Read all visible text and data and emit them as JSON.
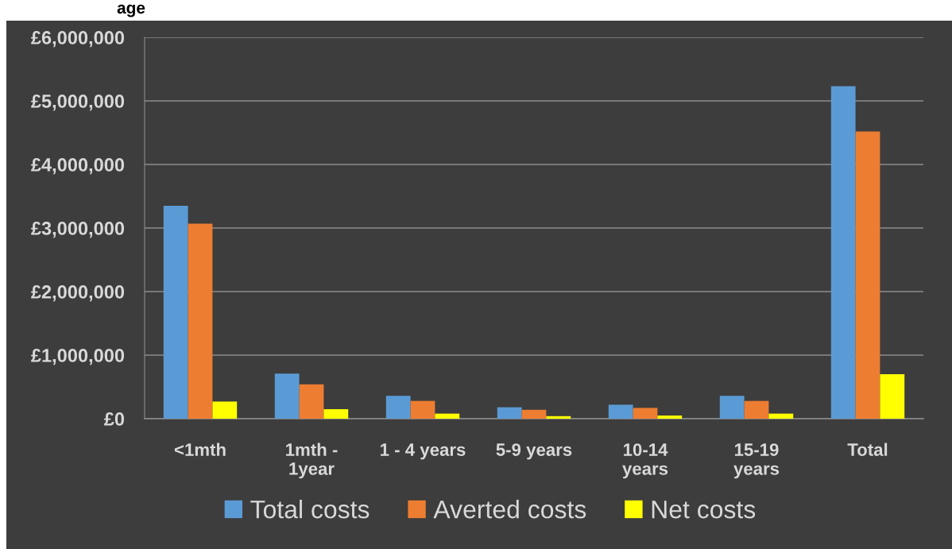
{
  "chart_data": {
    "type": "bar",
    "title": "age",
    "categories": [
      "<1mth",
      "1mth -\n1year",
      "1 - 4 years",
      "5-9 years",
      "10-14\nyears",
      "15-19\nyears",
      "Total"
    ],
    "series": [
      {
        "name": "Total costs",
        "color": "#5b9bd5",
        "values": [
          3350000,
          710000,
          360000,
          180000,
          220000,
          360000,
          5230000
        ]
      },
      {
        "name": "Averted costs",
        "color": "#ed7d31",
        "values": [
          3070000,
          540000,
          280000,
          140000,
          170000,
          280000,
          4520000
        ]
      },
      {
        "name": "Net costs",
        "color": "#ffff00",
        "values": [
          270000,
          150000,
          80000,
          40000,
          50000,
          80000,
          700000
        ]
      }
    ],
    "ylim": [
      0,
      6000000
    ],
    "yticks": [
      {
        "value": 0,
        "label": "£0"
      },
      {
        "value": 1000000,
        "label": "£1,000,000"
      },
      {
        "value": 2000000,
        "label": "£2,000,000"
      },
      {
        "value": 3000000,
        "label": "£3,000,000"
      },
      {
        "value": 4000000,
        "label": "£4,000,000"
      },
      {
        "value": 5000000,
        "label": "£5,000,000"
      },
      {
        "value": 6000000,
        "label": "£6,000,000"
      }
    ],
    "grid": "y",
    "legend": "bottom"
  }
}
